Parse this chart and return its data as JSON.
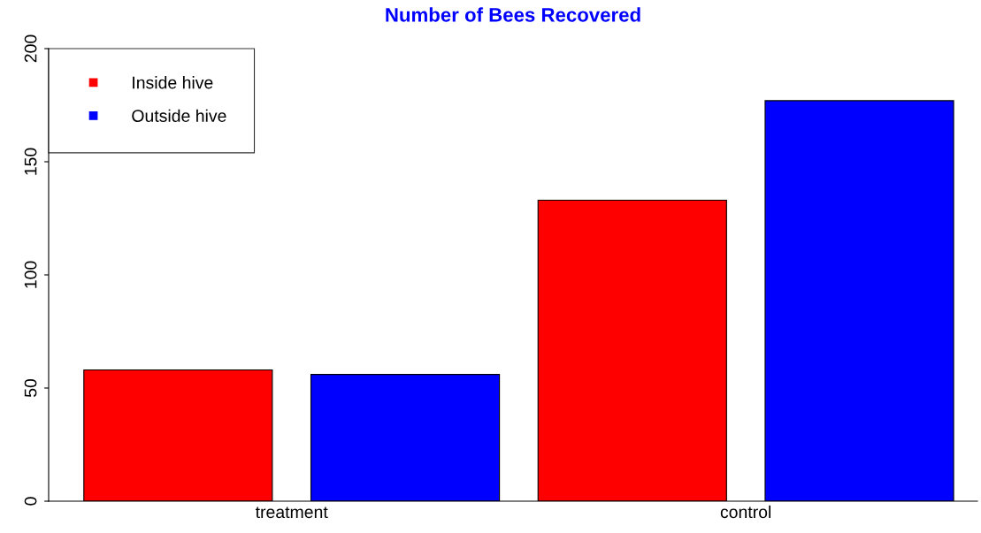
{
  "chart_data": {
    "type": "bar",
    "title": "Number of Bees Recovered",
    "categories": [
      "treatment",
      "control"
    ],
    "series": [
      {
        "name": "Inside hive",
        "color": "#ff0000",
        "values": [
          58,
          133
        ]
      },
      {
        "name": "Outside hive",
        "color": "#0000ff",
        "values": [
          56,
          177
        ]
      }
    ],
    "ylim": [
      0,
      200
    ],
    "yticks": [
      0,
      50,
      100,
      150,
      200
    ],
    "grid": false,
    "legend": "top left"
  }
}
